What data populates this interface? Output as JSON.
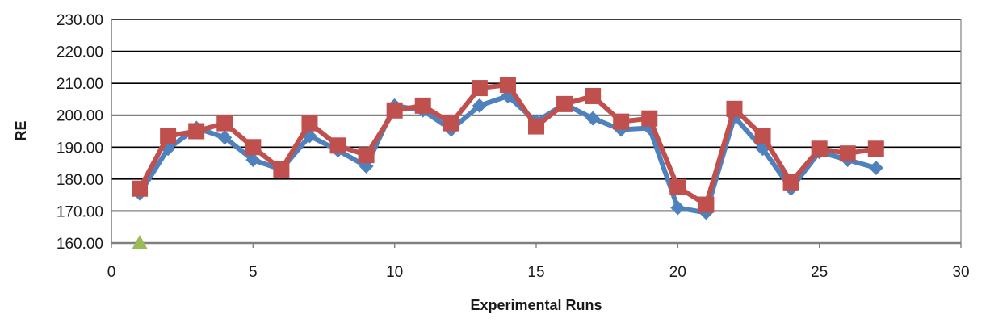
{
  "chart_data": {
    "type": "line",
    "title": "",
    "xlabel": "Experimental Runs",
    "ylabel": "RE",
    "xlim": [
      0,
      30
    ],
    "ylim": [
      160,
      230
    ],
    "x_ticks": [
      0,
      5,
      10,
      15,
      20,
      25,
      30
    ],
    "y_ticks": [
      "160.00",
      "170.00",
      "180.00",
      "190.00",
      "200.00",
      "210.00",
      "220.00",
      "230.00"
    ],
    "grid": "horizontal",
    "legend": "none",
    "series": [
      {
        "marker": "diamond",
        "color": "#4f81bd",
        "points": [
          [
            1,
            175.5
          ],
          [
            2,
            189.5
          ],
          [
            3,
            196
          ],
          [
            4,
            193
          ],
          [
            5,
            186
          ],
          [
            6,
            183
          ],
          [
            7,
            193.5
          ],
          [
            8,
            189
          ],
          [
            9,
            184
          ],
          [
            10,
            203
          ],
          [
            11,
            201.5
          ],
          [
            12,
            195.5
          ],
          [
            13,
            203
          ],
          [
            14,
            206
          ],
          [
            15,
            198
          ],
          [
            16,
            203.5
          ],
          [
            17,
            199
          ],
          [
            18,
            195.5
          ],
          [
            19,
            196
          ],
          [
            20,
            171
          ],
          [
            21,
            169.5
          ],
          [
            22,
            199.5
          ],
          [
            23,
            189.5
          ],
          [
            24,
            177
          ],
          [
            25,
            188.5
          ],
          [
            26,
            186
          ],
          [
            27,
            183.5
          ]
        ]
      },
      {
        "marker": "square",
        "color": "#c0504d",
        "points": [
          [
            1,
            177
          ],
          [
            2,
            193.5
          ],
          [
            3,
            195
          ],
          [
            4,
            197.5
          ],
          [
            5,
            190
          ],
          [
            6,
            183
          ],
          [
            7,
            197.5
          ],
          [
            8,
            190.5
          ],
          [
            9,
            187.5
          ],
          [
            10,
            201.5
          ],
          [
            11,
            203
          ],
          [
            12,
            197.5
          ],
          [
            13,
            208.5
          ],
          [
            14,
            209.5
          ],
          [
            15,
            196.5
          ],
          [
            16,
            203.5
          ],
          [
            17,
            206
          ],
          [
            18,
            198
          ],
          [
            19,
            199
          ],
          [
            20,
            177.5
          ],
          [
            21,
            172
          ],
          [
            22,
            202
          ],
          [
            23,
            193.5
          ],
          [
            24,
            179
          ],
          [
            25,
            189.5
          ],
          [
            26,
            188
          ],
          [
            27,
            189.5
          ]
        ]
      },
      {
        "marker": "triangle",
        "color": "#9bbb59",
        "line": false,
        "points": [
          [
            1,
            160
          ]
        ]
      }
    ]
  }
}
